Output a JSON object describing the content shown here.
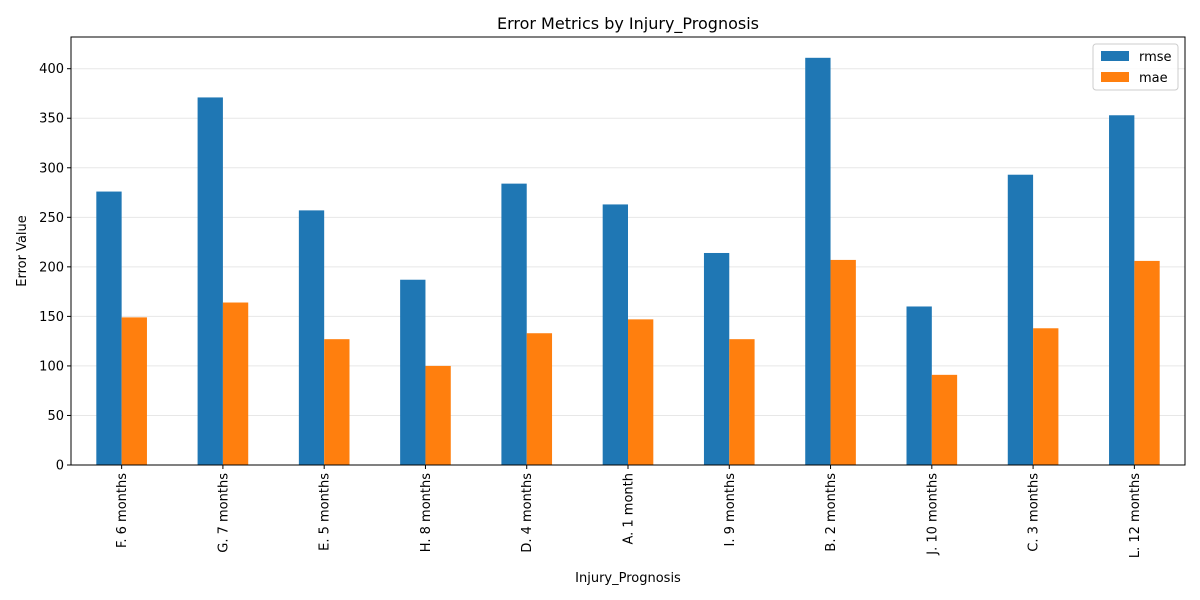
{
  "chart_data": {
    "type": "bar",
    "title": "Error Metrics by Injury_Prognosis",
    "xlabel": "Injury_Prognosis",
    "ylabel": "Error Value",
    "ylim": [
      0,
      432
    ],
    "yticks": [
      0,
      50,
      100,
      150,
      200,
      250,
      300,
      350,
      400
    ],
    "grid": "y",
    "legend_position": "top-right",
    "categories": [
      "F. 6 months",
      "G. 7 months",
      "E. 5 months",
      "H. 8 months",
      "D. 4 months",
      "A. 1 month",
      "I. 9 months",
      "B. 2 months",
      "J. 10 months",
      "C. 3 months",
      "L. 12 months"
    ],
    "series": [
      {
        "name": "rmse",
        "color": "#1f77b4",
        "values": [
          276,
          371,
          257,
          187,
          284,
          263,
          214,
          411,
          160,
          293,
          353
        ]
      },
      {
        "name": "mae",
        "color": "#ff7f0e",
        "values": [
          149,
          164,
          127,
          100,
          133,
          147,
          127,
          207,
          91,
          138,
          206
        ]
      }
    ]
  }
}
